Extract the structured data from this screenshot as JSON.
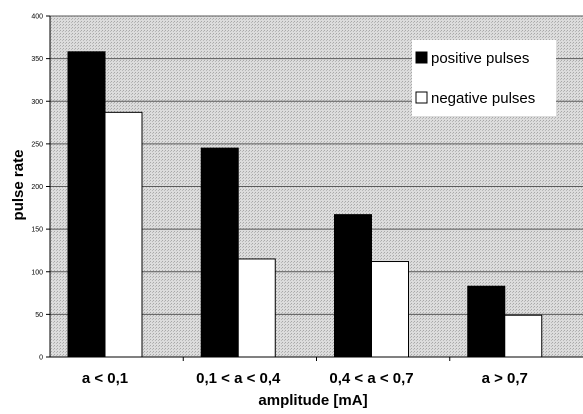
{
  "chart_data": {
    "type": "bar",
    "title": "",
    "xlabel": "amplitude [mA]",
    "ylabel": "pulse rate",
    "categories": [
      "a < 0,1",
      "0,1 < a < 0,4",
      "0,4 < a < 0,7",
      "a > 0,7"
    ],
    "series": [
      {
        "name": "positive pulses",
        "values": [
          358,
          245,
          167,
          83
        ],
        "color": "#000000"
      },
      {
        "name": "negative pulses",
        "values": [
          287,
          115,
          112,
          49
        ],
        "color": "#ffffff"
      }
    ],
    "ylim": [
      0,
      400
    ],
    "yticks": [
      0,
      50,
      100,
      150,
      200,
      250,
      300,
      350,
      400
    ],
    "grid": true,
    "legend_position": "top-right",
    "plot_background": "#d4d4d4"
  }
}
